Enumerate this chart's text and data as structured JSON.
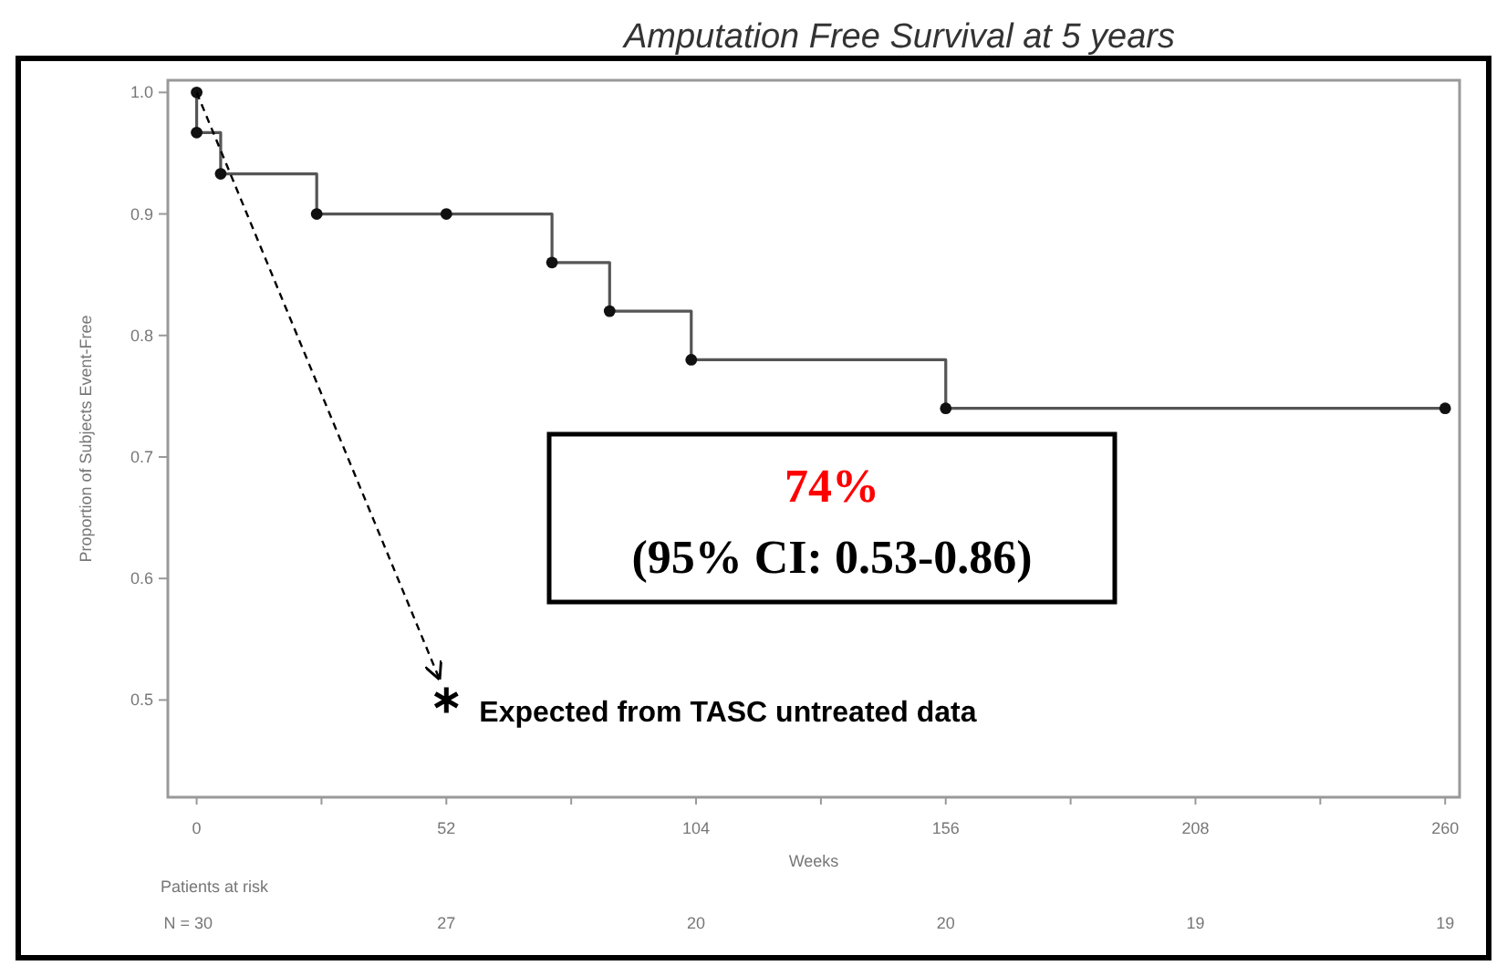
{
  "chart_data": {
    "type": "step",
    "title": "Amputation Free Survival at 5 years",
    "xlabel": "Weeks",
    "ylabel": "Proportion of Subjects Event-Free",
    "xlim": [
      -6,
      263
    ],
    "ylim": [
      0.42,
      1.01
    ],
    "xticks": [
      0,
      {
        "value": 26,
        "label": null
      },
      52,
      {
        "value": 78,
        "label": null
      },
      104,
      {
        "value": 130,
        "label": null
      },
      156,
      {
        "value": 182,
        "label": null
      },
      208,
      {
        "value": 234,
        "label": null
      },
      260
    ],
    "yticks": [
      {
        "value": 0.5,
        "label": "0.5"
      },
      {
        "value": 0.6,
        "label": "0.6"
      },
      {
        "value": 0.7,
        "label": "0.7"
      },
      {
        "value": 0.8,
        "label": "0.8"
      },
      {
        "value": 0.9,
        "label": "0.9"
      },
      {
        "value": 1,
        "label": "1.0"
      }
    ],
    "grid": false,
    "series": [
      {
        "type": "step",
        "color": "#555555",
        "marker": "circle",
        "line_style": "solid",
        "x": [
          0,
          0,
          5,
          25,
          52,
          74,
          86,
          103,
          156,
          260
        ],
        "values": [
          1.0,
          0.967,
          0.933,
          0.9,
          0.9,
          0.86,
          0.82,
          0.78,
          0.74,
          0.74
        ]
      },
      {
        "type": "scatter",
        "color": "#000000",
        "marker": "cross",
        "x": [
          52
        ],
        "values": [
          0.5
        ]
      }
    ],
    "annotations": [
      "74%",
      "(95% CI: 0.53-0.86)",
      "Patients at risk",
      {
        "text": "Expected from TASC untreated data",
        "x": 52,
        "y": 0.5
      },
      "N = 30",
      "27",
      "20",
      "20",
      "19",
      "19"
    ]
  }
}
